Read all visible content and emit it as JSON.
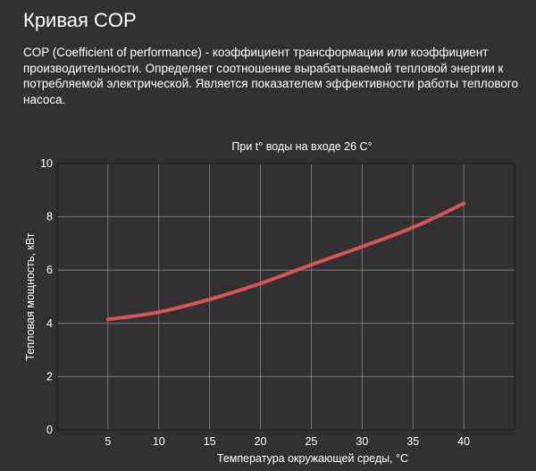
{
  "page": {
    "title": "Кривая COP",
    "description": "COP (Coefficient of performance) - коэффициент трансформации или коэффициент производительности. Определяет соотношение вырабатываемой тепловой энергии к потребляемой электрической. Является показателем эффективности работы теплового насоса."
  },
  "colors": {
    "background": "#323030",
    "text": "#ffffff",
    "line": "#d65555",
    "grid": "#8a8a8a"
  },
  "chart_data": {
    "type": "line",
    "title": "При t° воды на входе 26 C°",
    "xlabel": "Температура окружающей среды, °C",
    "ylabel": "Тепловая мощность, кВт",
    "x_ticks": [
      5,
      10,
      15,
      20,
      25,
      30,
      35,
      40
    ],
    "y_ticks": [
      0,
      2,
      4,
      6,
      8,
      10
    ],
    "xlim": [
      0,
      45
    ],
    "ylim": [
      0,
      10
    ],
    "grid": true,
    "series": [
      {
        "x": [
          5,
          10,
          15,
          20,
          25,
          30,
          35,
          40
        ],
        "values": [
          4.15,
          4.42,
          4.9,
          5.5,
          6.2,
          6.88,
          7.6,
          8.5
        ]
      }
    ]
  }
}
